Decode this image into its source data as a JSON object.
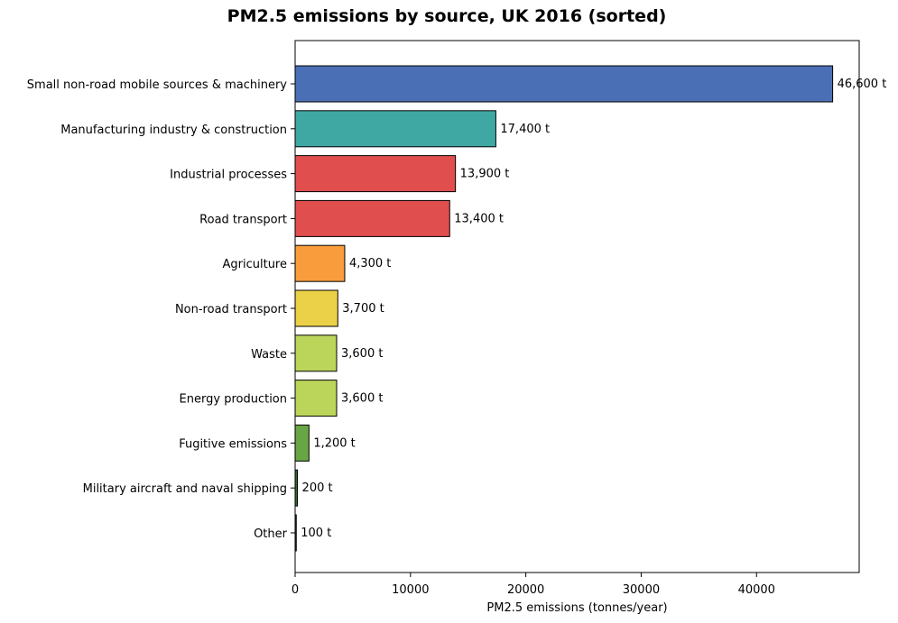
{
  "chart_data": {
    "type": "bar",
    "orientation": "horizontal",
    "title": "PM2.5 emissions by source, UK 2016 (sorted)",
    "xlabel": "PM2.5 emissions (tonnes/year)",
    "ylabel": "",
    "xlim": [
      0,
      48900
    ],
    "x_ticks": [
      0,
      10000,
      20000,
      30000,
      40000
    ],
    "grid": false,
    "legend": "none",
    "categories": [
      "Small non-road mobile sources & machinery",
      "Manufacturing industry & construction",
      "Industrial processes",
      "Road transport",
      "Agriculture",
      "Non-road transport",
      "Waste",
      "Energy production",
      "Fugitive emissions",
      "Military aircraft and naval shipping",
      "Other"
    ],
    "values": [
      46600,
      17400,
      13900,
      13400,
      4300,
      3700,
      3600,
      3600,
      1200,
      200,
      100
    ],
    "data_labels": [
      "46,600 t",
      "17,400 t",
      "13,900 t",
      "13,400 t",
      "4,300 t",
      "3,700 t",
      "3,600 t",
      "3,600 t",
      "1,200 t",
      "200 t",
      "100 t"
    ],
    "colors": [
      "#4a6fb5",
      "#40a8a3",
      "#e04e4d",
      "#e04e4d",
      "#f99d3c",
      "#ebd148",
      "#bbd55b",
      "#bbd55b",
      "#68a544",
      "#2f6a2e",
      "#1e4d28"
    ]
  }
}
